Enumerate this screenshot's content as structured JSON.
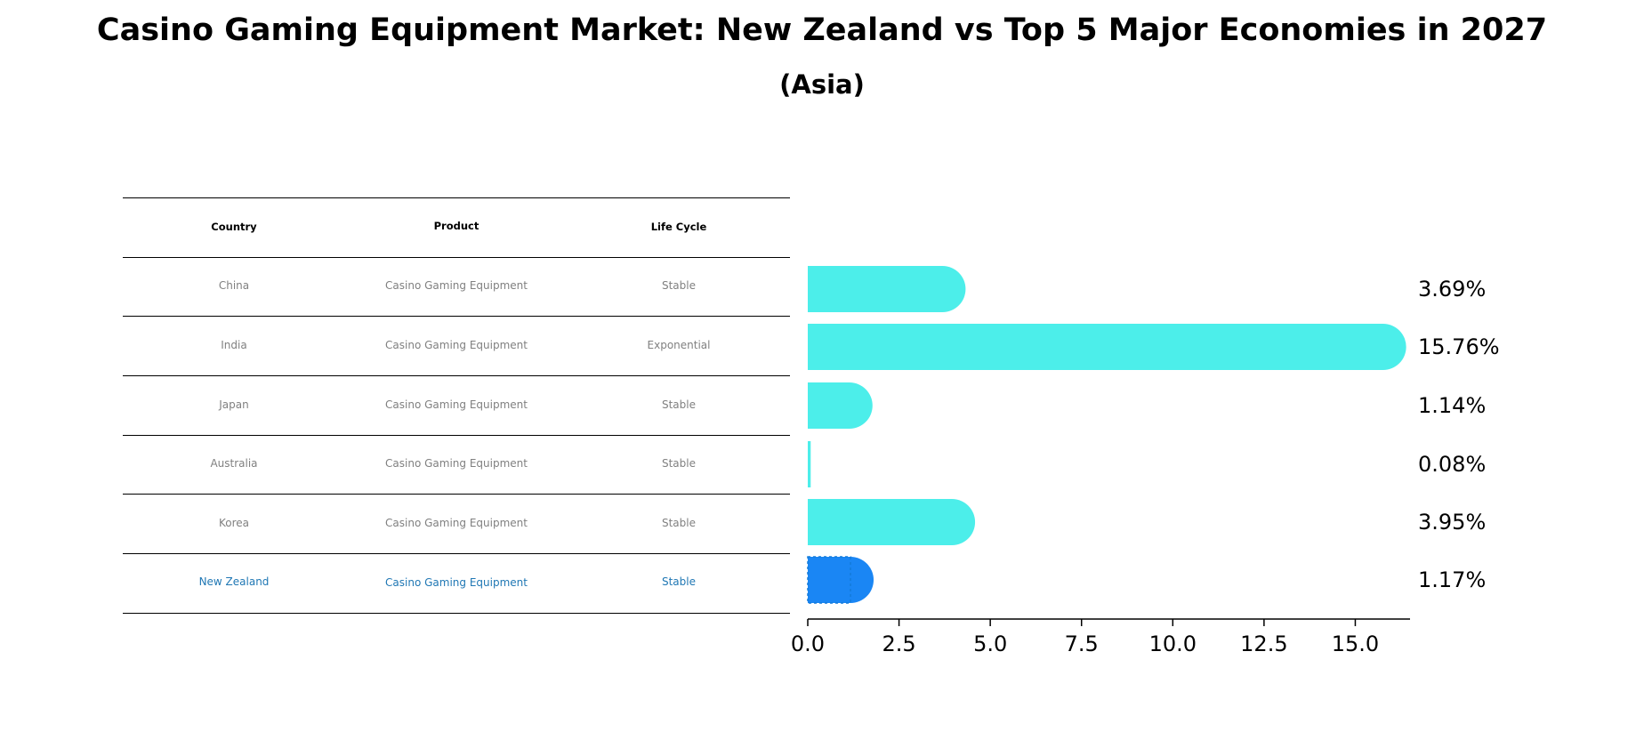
{
  "title": "Casino Gaming Equipment Market: New Zealand vs Top 5 Major Economies in 2027",
  "subtitle": "(Asia)",
  "table": {
    "headers": [
      "Country",
      "Product",
      "Life Cycle"
    ],
    "rows": [
      {
        "country": "China",
        "product": "Casino Gaming Equipment",
        "life_cycle": "Stable",
        "highlight": false
      },
      {
        "country": "India",
        "product": "Casino Gaming Equipment",
        "life_cycle": "Exponential",
        "highlight": false
      },
      {
        "country": "Japan",
        "product": "Casino Gaming Equipment",
        "life_cycle": "Stable",
        "highlight": false
      },
      {
        "country": "Australia",
        "product": "Casino Gaming Equipment",
        "life_cycle": "Stable",
        "highlight": false
      },
      {
        "country": "Korea",
        "product": "Casino Gaming Equipment",
        "life_cycle": "Stable",
        "highlight": false
      },
      {
        "country": "New Zealand",
        "product": "Casino Gaming Equipment",
        "life_cycle": "Stable",
        "highlight": true
      }
    ]
  },
  "chart_data": {
    "type": "bar",
    "orientation": "horizontal",
    "categories": [
      "China",
      "India",
      "Japan",
      "Australia",
      "Korea",
      "New Zealand"
    ],
    "values": [
      3.69,
      15.76,
      1.14,
      0.08,
      3.95,
      1.17
    ],
    "value_labels": [
      "3.69%",
      "15.76%",
      "1.14%",
      "0.08%",
      "3.95%",
      "1.17%"
    ],
    "xlim": [
      0,
      16.5
    ],
    "xticks": [
      0.0,
      2.5,
      5.0,
      7.5,
      10.0,
      12.5,
      15.0
    ],
    "xtick_labels": [
      "0.0",
      "2.5",
      "5.0",
      "7.5",
      "10.0",
      "12.5",
      "15.0"
    ],
    "grid": false,
    "colors": {
      "bar": "#4ceeea",
      "highlight_bar": "#1a86f4",
      "highlight_text": "#1f77b4",
      "table_text": "#808080"
    }
  }
}
